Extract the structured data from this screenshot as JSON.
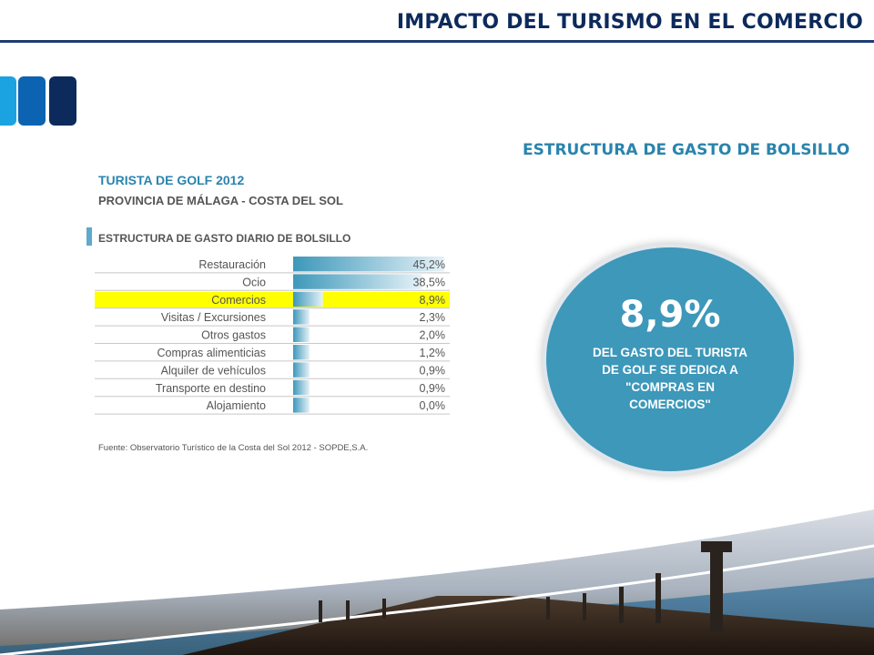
{
  "header": {
    "title": "IMPACTO DEL TURISMO EN EL COMERCIO"
  },
  "colors": {
    "navy": "#0d2a5c",
    "teal": "#2a84ad",
    "highlight": "#ffff00",
    "bubble": "#3d98ba",
    "bar": "#3d98ba"
  },
  "logo": {
    "blocks": [
      "#1aa3e0",
      "#0b63b1",
      "#0d2a5c"
    ]
  },
  "section_title": "ESTRUCTURA DE GASTO DE BOLSILLO",
  "chart_data": {
    "type": "bar",
    "title": "TURISTA DE GOLF 2012",
    "subtitle": "PROVINCIA DE MÁLAGA - COSTA DEL SOL",
    "heading": "ESTRUCTURA DE GASTO DIARIO DE BOLSILLO",
    "categories": [
      "Restauración",
      "Ocio",
      "Comercios",
      "Visitas / Excursiones",
      "Otros gastos",
      "Compras alimenticias",
      "Alquiler de vehículos",
      "Transporte en destino",
      "Alojamiento"
    ],
    "values": [
      45.2,
      38.5,
      8.9,
      2.3,
      2.0,
      1.2,
      0.9,
      0.9,
      0.0
    ],
    "value_labels": [
      "45,2%",
      "38,5%",
      "8,9%",
      "2,3%",
      "2,0%",
      "1,2%",
      "0,9%",
      "0,9%",
      "0,0%"
    ],
    "highlight_index": 2,
    "xlim": [
      0,
      45.2
    ],
    "source": "Fuente: Observatorio Turístico de la Costa del Sol 2012 - SOPDE,S.A."
  },
  "callout": {
    "value": "8,9%",
    "text": "DEL GASTO DEL TURISTA DE GOLF SE DEDICA A \"COMPRAS EN COMERCIOS\""
  }
}
